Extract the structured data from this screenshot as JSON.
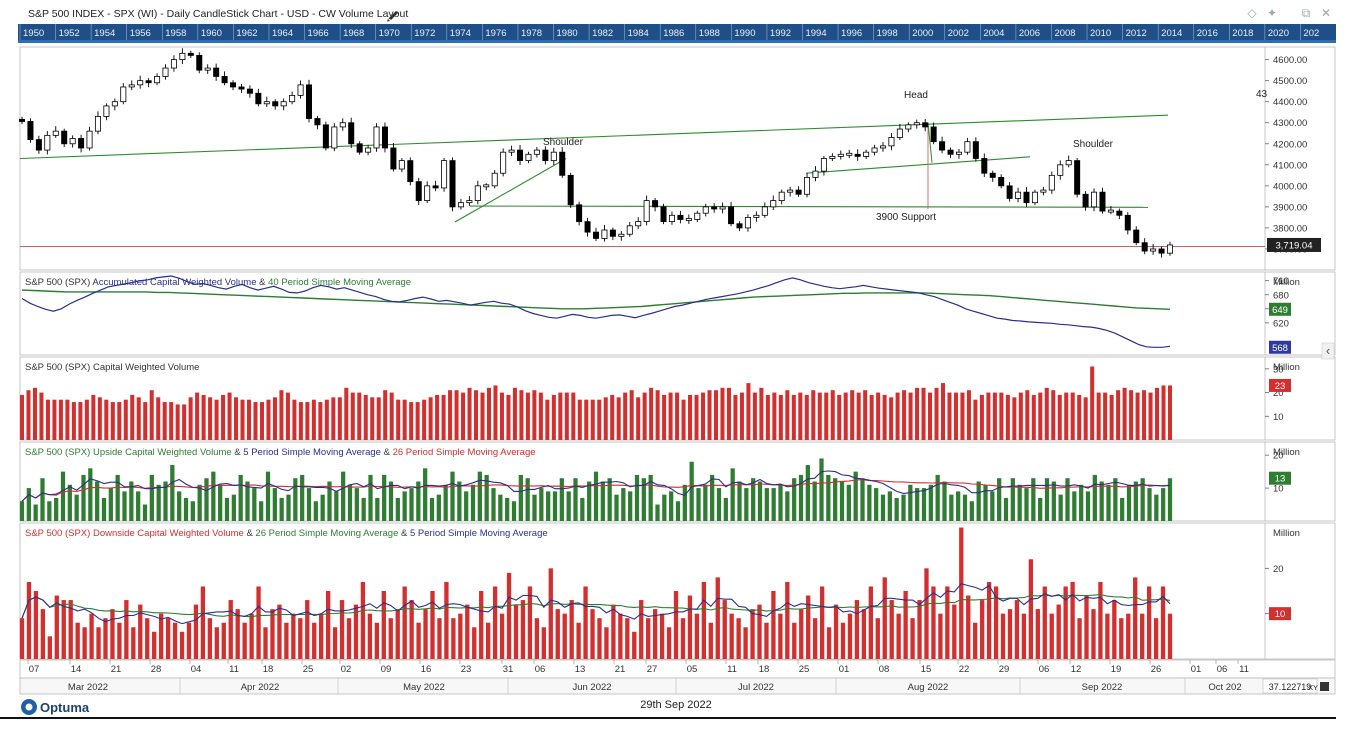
{
  "window": {
    "title": "S&P 500 INDEX - SPX (WI) - Daily CandleStick Chart - USD - CW Volume Layout",
    "controls": [
      "◇",
      "✦",
      "⧉",
      "✕"
    ]
  },
  "timeline": {
    "years": [
      "1950",
      "1952",
      "1954",
      "1956",
      "1958",
      "1960",
      "1962",
      "1964",
      "1966",
      "1968",
      "1970",
      "1972",
      "1974",
      "1976",
      "1978",
      "1980",
      "1982",
      "1984",
      "1986",
      "1988",
      "1990",
      "1992",
      "1994",
      "1996",
      "1998",
      "2000",
      "2002",
      "2004",
      "2006",
      "2008",
      "2010",
      "2012",
      "2014",
      "2016",
      "2018",
      "2020",
      "202"
    ]
  },
  "colors": {
    "up": "#ffffff",
    "down": "#000000",
    "trend": "#2e8b2e",
    "support": "#d06060",
    "blue": "#2a2f8f",
    "green": "#2e7d32",
    "red": "#d32f2f",
    "bar_green": "#2e7d32",
    "bar_red": "#d32f2f"
  },
  "chart_data": [
    {
      "type": "candlestick",
      "title": "S&P 500 INDEX - SPX (WI)",
      "ylim": [
        3600,
        4660
      ],
      "yticks": [
        "4600.00",
        "4500.00",
        "4400.00",
        "4300.00",
        "4200.00",
        "4100.00",
        "4000.00",
        "3900.00",
        "3800.00",
        "3700.00"
      ],
      "last_value": "3,719.04",
      "partial_label": "43",
      "annotations": [
        "Shoulder",
        "Head",
        "Shoulder",
        "3900 Support"
      ],
      "closes": [
        4306,
        4220,
        4170,
        4240,
        4260,
        4200,
        4225,
        4180,
        4260,
        4330,
        4380,
        4400,
        4470,
        4480,
        4500,
        4490,
        4520,
        4560,
        4600,
        4630,
        4620,
        4550,
        4560,
        4520,
        4490,
        4470,
        4460,
        4440,
        4390,
        4400,
        4380,
        4400,
        4430,
        4480,
        4320,
        4290,
        4180,
        4280,
        4300,
        4200,
        4160,
        4180,
        4280,
        4180,
        4080,
        4120,
        4020,
        3930,
        4000,
        3990,
        4120,
        3900,
        3920,
        3930,
        4000,
        4000,
        4060,
        4160,
        4170,
        4120,
        4150,
        4170,
        4120,
        4160,
        4050,
        3910,
        3830,
        3780,
        3750,
        3790,
        3760,
        3770,
        3810,
        3830,
        3930,
        3900,
        3830,
        3860,
        3840,
        3840,
        3870,
        3900,
        3890,
        3900,
        3820,
        3800,
        3850,
        3860,
        3900,
        3930,
        3970,
        3980,
        3960,
        4040,
        4070,
        4130,
        4140,
        4150,
        4150,
        4140,
        4160,
        4180,
        4190,
        4230,
        4270,
        4290,
        4300,
        4280,
        4210,
        4170,
        4150,
        4160,
        4210,
        4130,
        4060,
        4040,
        4000,
        3940,
        3970,
        3920,
        3970,
        3980,
        4050,
        4100,
        4120,
        3960,
        3900,
        3970,
        3880,
        3880,
        3860,
        3790,
        3730,
        3690,
        3700,
        3680,
        3719
      ],
      "trendlines": [
        "neckline 3900",
        "upper channel",
        "inner channel",
        "left shoulder rise",
        "head marker"
      ]
    },
    {
      "type": "line",
      "title_parts": [
        "S&P 500 (SPX)",
        "Accumulated Capital Weighted Volume",
        "&",
        "40 Period Simple Moving Average"
      ],
      "unit": "Million",
      "ylim": [
        560,
        720
      ],
      "yticks": [
        "710",
        "680",
        "650",
        "620"
      ],
      "badges": [
        "649",
        "568"
      ],
      "series": [
        {
          "name": "Accumulated Capital Weighted Volume",
          "values": [
            672,
            662,
            655,
            649,
            645,
            650,
            660,
            668,
            675,
            683,
            690,
            697,
            700,
            703,
            706,
            710,
            712,
            716,
            718,
            720,
            715,
            708,
            702,
            704,
            700,
            695,
            692,
            698,
            702,
            695,
            690,
            694,
            698,
            692,
            685,
            684,
            688,
            695,
            700,
            697,
            692,
            695,
            690,
            685,
            680,
            676,
            670,
            666,
            665,
            668,
            672,
            675,
            671,
            666,
            668,
            665,
            662,
            658,
            661,
            664,
            666,
            662,
            660,
            654,
            646,
            640,
            636,
            632,
            630,
            634,
            638,
            636,
            632,
            630,
            633,
            636,
            637,
            634,
            631,
            636,
            640,
            645,
            650,
            655,
            658,
            662,
            666,
            670,
            673,
            676,
            679,
            682,
            686,
            690,
            695,
            700,
            706,
            712,
            716,
            712,
            706,
            702,
            698,
            695,
            693,
            695,
            697,
            700,
            697,
            694,
            692,
            690,
            688,
            686,
            684,
            680,
            676,
            670,
            664,
            658,
            650,
            645,
            640,
            635,
            630,
            628,
            625,
            624,
            622,
            621,
            620,
            619,
            617,
            616,
            614,
            612,
            611,
            608,
            604,
            598,
            590,
            582,
            574,
            569,
            568,
            568,
            570
          ]
        },
        {
          "name": "40 Period Simple Moving Average",
          "values": [
            690,
            689,
            688,
            687,
            686,
            686,
            686,
            686,
            686,
            686,
            686,
            686,
            685,
            685,
            684,
            683,
            682,
            681,
            680,
            679,
            678,
            677,
            676,
            675,
            674,
            673,
            672,
            671,
            670,
            669,
            668,
            667,
            666,
            665,
            664,
            663,
            662,
            661,
            660,
            659,
            658,
            657,
            656,
            655,
            654,
            653,
            652,
            651,
            650,
            650,
            650,
            651,
            652,
            653,
            654,
            655,
            657,
            659,
            661,
            663,
            665,
            667,
            669,
            671,
            673,
            675,
            676,
            677,
            678,
            679,
            680,
            681,
            682,
            683,
            683,
            684,
            684,
            684,
            684,
            684,
            684,
            683,
            682,
            681,
            680,
            679,
            678,
            676,
            674,
            672,
            670,
            668,
            666,
            664,
            662,
            660,
            658,
            656,
            654,
            652,
            651,
            650,
            649
          ]
        }
      ]
    },
    {
      "type": "bar",
      "title_parts": [
        "S&P 500 (SPX)",
        "Capital Weighted Volume"
      ],
      "unit": "Million",
      "ylim": [
        0,
        35
      ],
      "yticks": [
        "30",
        "20",
        "10"
      ],
      "badges": [
        "23"
      ],
      "values": [
        19,
        21,
        22,
        20,
        17,
        17,
        17,
        17,
        16,
        16,
        17,
        19,
        18,
        17,
        16,
        16,
        17,
        19,
        18,
        16,
        21,
        18,
        16,
        16,
        15,
        15,
        18,
        20,
        19,
        18,
        17,
        19,
        20,
        18,
        17,
        17,
        16,
        16,
        17,
        18,
        21,
        20,
        17,
        16,
        16,
        17,
        16,
        17,
        18,
        18,
        22,
        20,
        20,
        19,
        18,
        18,
        21,
        20,
        17,
        17,
        16,
        16,
        17,
        18,
        19,
        19,
        21,
        21,
        20,
        22,
        21,
        20,
        22,
        23,
        20,
        19,
        22,
        21,
        20,
        21,
        20,
        17,
        19,
        20,
        20,
        20,
        17,
        17,
        17,
        17,
        18,
        19,
        18,
        20,
        21,
        18,
        20,
        22,
        21,
        19,
        20,
        20,
        17,
        19,
        19,
        20,
        21,
        21,
        22,
        22,
        19,
        20,
        24,
        20,
        22,
        19,
        20,
        19,
        21,
        19,
        20,
        19,
        21,
        20,
        20,
        21,
        19,
        20,
        21,
        20,
        21,
        19,
        20,
        19,
        18,
        20,
        21,
        20,
        22,
        22,
        20,
        22,
        24,
        20,
        20,
        20,
        21,
        17,
        19,
        20,
        20,
        20,
        19,
        18,
        20,
        21,
        19,
        20,
        22,
        21,
        19,
        20,
        20,
        19,
        18,
        31,
        20,
        20,
        19,
        21,
        22,
        21,
        20,
        21,
        20,
        22,
        23,
        23
      ]
    },
    {
      "type": "bar",
      "title_parts": [
        "S&P 500 (SPX)",
        "Upside Capital Weighted Volume",
        "&",
        "5 Period Simple Moving Average",
        "&",
        "26 Period Simple Moving Average"
      ],
      "unit": "Million",
      "ylim": [
        0,
        24
      ],
      "yticks": [
        "20",
        "10"
      ],
      "badges": [
        "13"
      ],
      "values": [
        6,
        10,
        5,
        13,
        6,
        7,
        15,
        11,
        8,
        14,
        16,
        12,
        7,
        10,
        14,
        9,
        12,
        9,
        5,
        14,
        11,
        12,
        17,
        9,
        7,
        6,
        11,
        13,
        15,
        11,
        7,
        8,
        14,
        12,
        10,
        6,
        15,
        10,
        7,
        8,
        13,
        14,
        10,
        6,
        8,
        12,
        9,
        15,
        11,
        10,
        7,
        14,
        7,
        14,
        12,
        7,
        9,
        10,
        12,
        16,
        7,
        8,
        11,
        15,
        12,
        9,
        11,
        15,
        14,
        10,
        8,
        7,
        6,
        14,
        13,
        8,
        10,
        9,
        9,
        13,
        9,
        13,
        7,
        12,
        15,
        12,
        13,
        8,
        10,
        9,
        14,
        13,
        14,
        5,
        8,
        9,
        6,
        11,
        18,
        10,
        11,
        14,
        10,
        7,
        16,
        12,
        10,
        13,
        12,
        10,
        10,
        11,
        9,
        13,
        14,
        17,
        12,
        19,
        14,
        13,
        12,
        11,
        15,
        13,
        11,
        10,
        8,
        9,
        7,
        8,
        11,
        10,
        10,
        11,
        14,
        12,
        8,
        9,
        8,
        6,
        12,
        11,
        9,
        13,
        7,
        13,
        11,
        10,
        13,
        7,
        13,
        12,
        8,
        13,
        9,
        11,
        9,
        14,
        12,
        11,
        13,
        7,
        11,
        12,
        13,
        10,
        8,
        10,
        13
      ]
    },
    {
      "type": "bar",
      "title_parts": [
        "S&P 500 (SPX)",
        "Downside Capital Weighted Volume",
        "&",
        "26 Period Simple Moving Average",
        "&",
        "5 Period Simple Moving Average"
      ],
      "unit": "Million",
      "ylim": [
        0,
        30
      ],
      "yticks": [
        "20",
        "10"
      ],
      "badges": [
        "10"
      ],
      "x_labels": [
        "07",
        "14",
        "21",
        "28",
        "04",
        "11",
        "18",
        "25",
        "02",
        "09",
        "16",
        "23",
        "31",
        "06",
        "13",
        "21",
        "27",
        "05",
        "11",
        "18",
        "25",
        "01",
        "08",
        "15",
        "22",
        "29",
        "06",
        "12",
        "19",
        "26",
        "01",
        "06",
        "11"
      ],
      "months": [
        "Mar 2022",
        "Apr 2022",
        "May 2022",
        "Jun 2022",
        "Jul 2022",
        "Aug 2022",
        "Sep 2022",
        "Oct 202"
      ],
      "values": [
        9,
        17,
        15,
        11,
        5,
        14,
        13,
        13,
        8,
        7,
        10,
        7,
        9,
        11,
        8,
        13,
        7,
        12,
        9,
        6,
        10,
        9,
        8,
        6,
        8,
        12,
        16,
        9,
        7,
        8,
        13,
        11,
        8,
        10,
        16,
        7,
        11,
        12,
        8,
        10,
        9,
        13,
        8,
        10,
        15,
        7,
        13,
        9,
        12,
        17,
        10,
        8,
        15,
        9,
        11,
        16,
        13,
        8,
        11,
        15,
        9,
        17,
        9,
        10,
        12,
        7,
        15,
        8,
        16,
        10,
        19,
        12,
        13,
        16,
        9,
        7,
        20,
        11,
        10,
        13,
        8,
        16,
        11,
        9,
        7,
        12,
        10,
        9,
        6,
        13,
        9,
        11,
        10,
        7,
        15,
        9,
        14,
        10,
        17,
        8,
        18,
        13,
        10,
        9,
        7,
        11,
        12,
        8,
        15,
        10,
        17,
        8,
        11,
        14,
        9,
        16,
        7,
        12,
        8,
        10,
        13,
        11,
        16,
        9,
        18,
        13,
        10,
        15,
        9,
        13,
        20,
        16,
        10,
        16,
        12,
        29,
        14,
        8,
        13,
        17,
        16,
        10,
        11,
        13,
        10,
        22,
        11,
        16,
        10,
        12,
        16,
        17,
        9,
        14,
        11,
        17,
        10,
        13,
        9,
        10,
        18,
        10,
        16,
        9,
        16,
        10
      ]
    }
  ],
  "footer": {
    "logo": "Optuma",
    "date": "29th Sep 2022",
    "readout": "37.122719",
    "xy": "XY"
  }
}
